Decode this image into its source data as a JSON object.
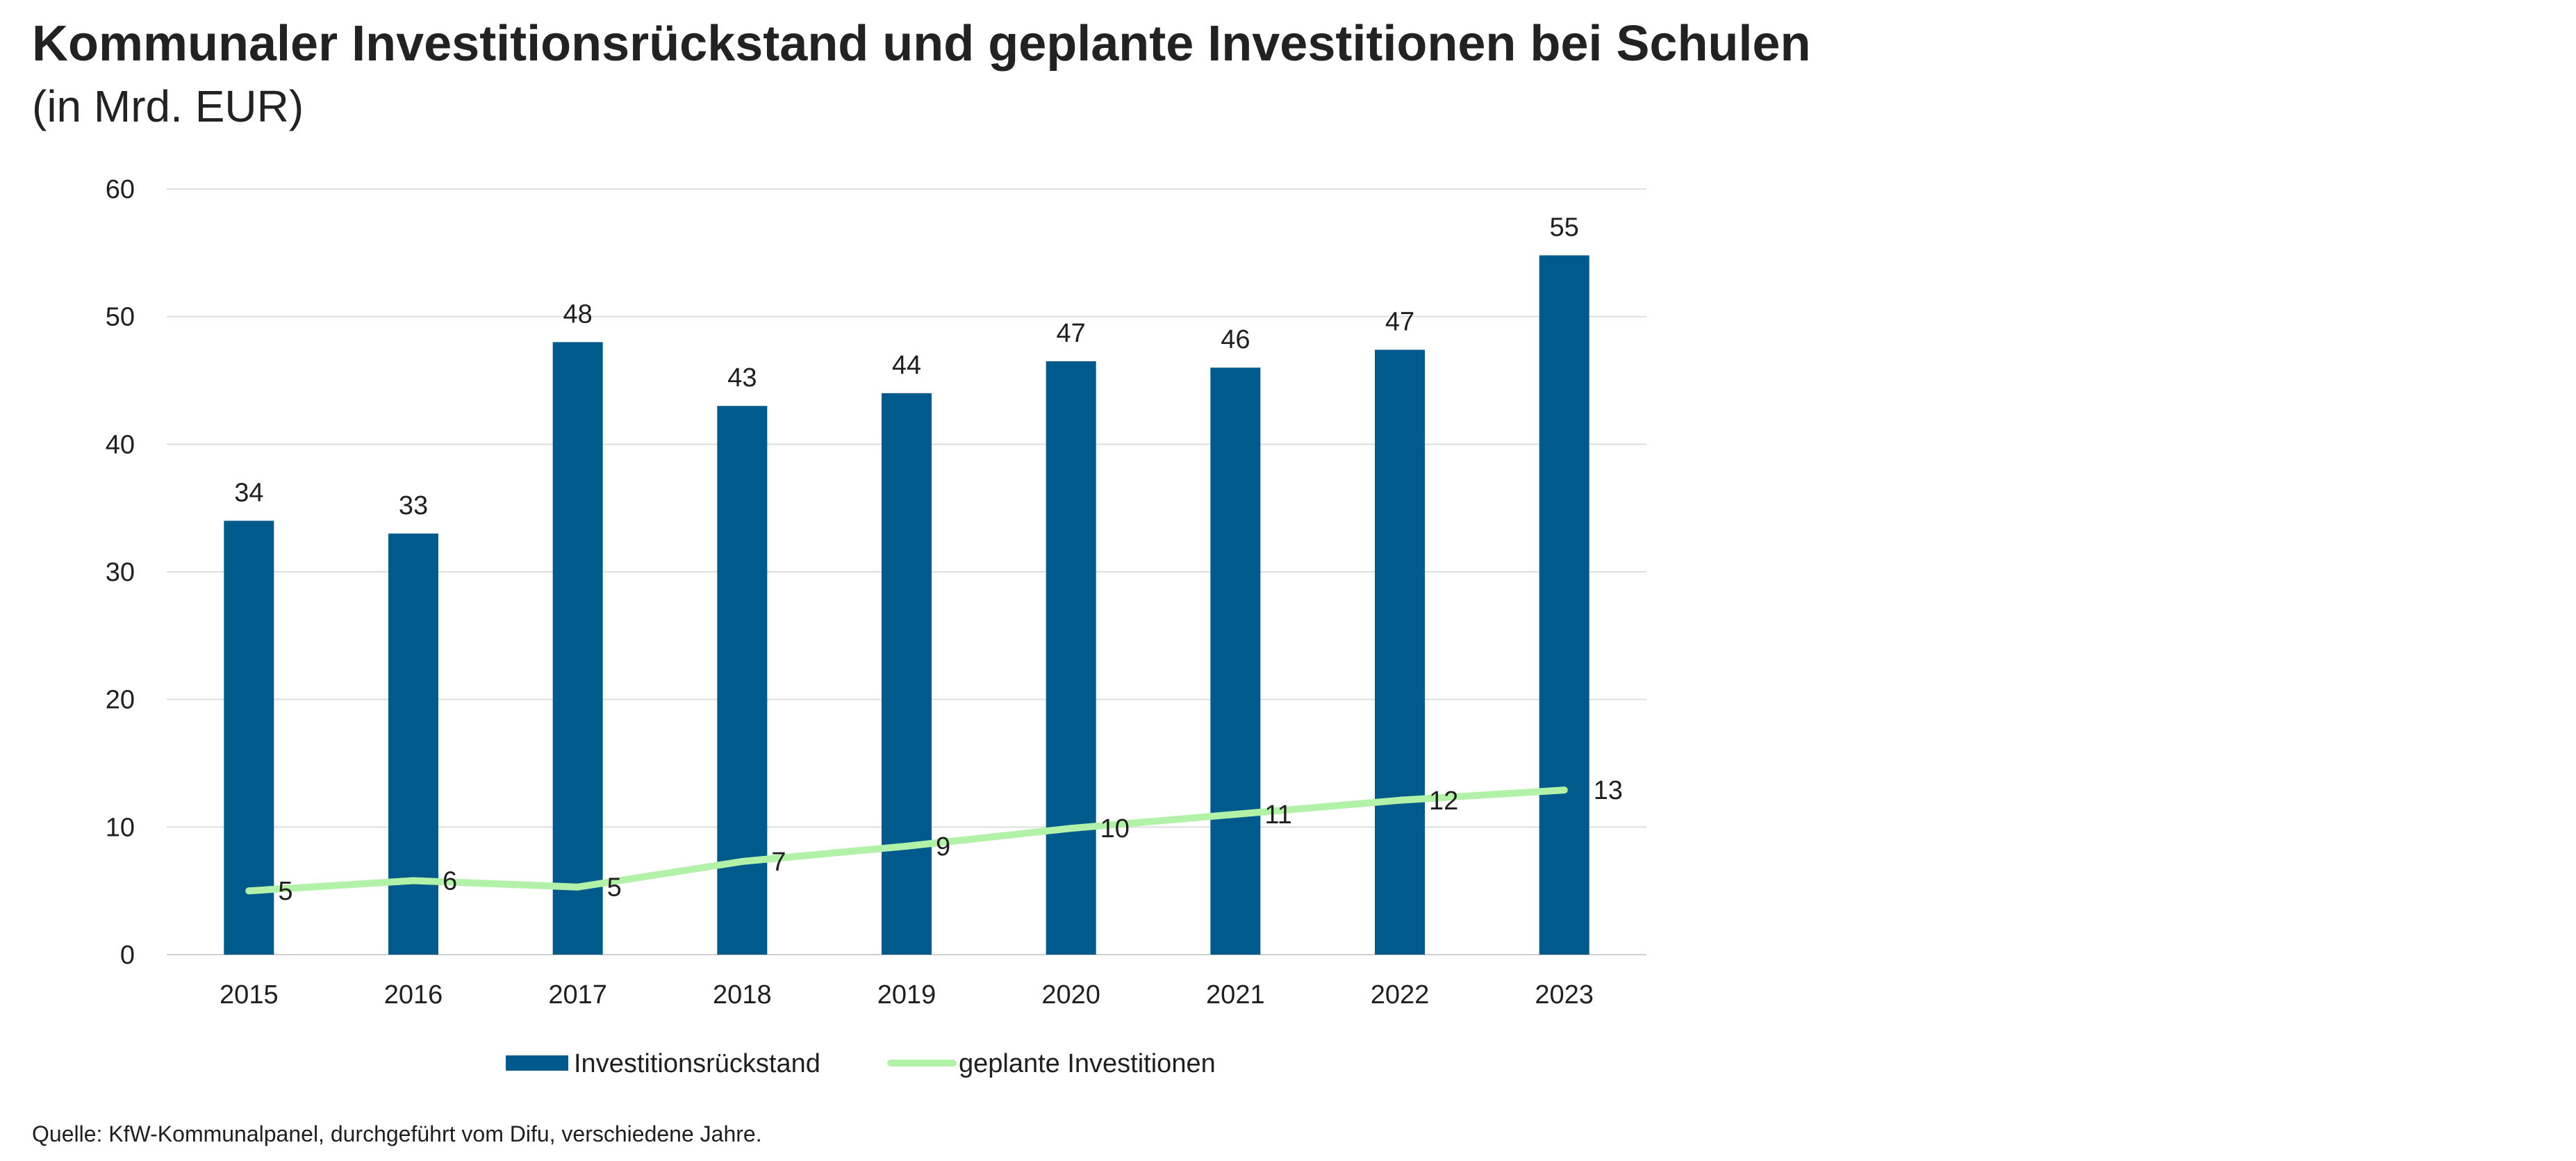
{
  "header": {
    "title": "Kommunaler Investitionsrückstand und geplante Investitionen bei Schulen",
    "subtitle": "(in Mrd. EUR)"
  },
  "footer": {
    "source": "Quelle: KfW-Kommunalpanel, durchgeführt vom Difu, verschiedene Jahre."
  },
  "chart_data": {
    "type": "bar",
    "title": "Kommunaler Investitionsrückstand und geplante Investitionen bei Schulen",
    "subtitle": "(in Mrd. EUR)",
    "xlabel": "",
    "ylabel": "",
    "categories": [
      "2015",
      "2016",
      "2017",
      "2018",
      "2019",
      "2020",
      "2021",
      "2022",
      "2023"
    ],
    "ylim": [
      0,
      60
    ],
    "yticks": [
      0,
      10,
      20,
      30,
      40,
      50,
      60
    ],
    "grid": true,
    "legend_position": "bottom",
    "series": [
      {
        "name": "Investitionsrückstand",
        "type": "bar",
        "color": "#005A8C",
        "values": [
          34,
          33,
          48,
          43,
          44,
          46.5,
          46,
          47.4,
          54.8
        ],
        "labels": [
          "34",
          "33",
          "48",
          "43",
          "44",
          "47",
          "46",
          "47",
          "55"
        ]
      },
      {
        "name": "geplante Investitionen",
        "type": "line",
        "color": "#B2F2A8",
        "values": [
          5,
          5.8,
          5.3,
          7.3,
          8.5,
          9.9,
          11,
          12.1,
          12.9
        ],
        "labels": [
          "5",
          "6",
          "5",
          "7",
          "9",
          "10",
          "11",
          "12",
          "13"
        ]
      }
    ]
  }
}
